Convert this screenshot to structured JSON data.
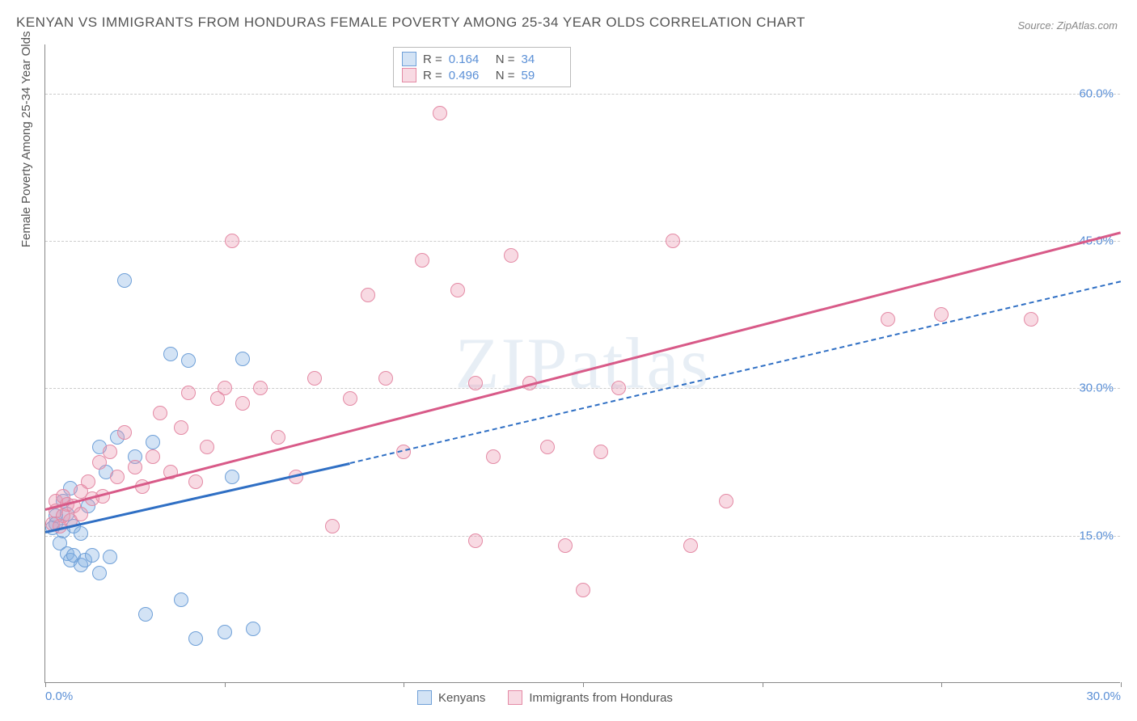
{
  "title": "KENYAN VS IMMIGRANTS FROM HONDURAS FEMALE POVERTY AMONG 25-34 YEAR OLDS CORRELATION CHART",
  "source": "Source: ZipAtlas.com",
  "watermark": "ZIPatlas",
  "y_axis_label": "Female Poverty Among 25-34 Year Olds",
  "chart": {
    "type": "scatter",
    "xlim": [
      0,
      30
    ],
    "ylim": [
      0,
      65
    ],
    "x_ticks": [
      0,
      5,
      10,
      15,
      20,
      25,
      30
    ],
    "x_tick_labels": {
      "0": "0.0%",
      "30": "30.0%"
    },
    "y_gridlines": [
      15,
      30,
      45,
      60
    ],
    "y_tick_labels": {
      "15": "15.0%",
      "30": "30.0%",
      "45": "45.0%",
      "60": "60.0%"
    },
    "background_color": "#ffffff",
    "grid_color": "#cccccc",
    "axis_color": "#888888"
  },
  "series": [
    {
      "name": "Kenyans",
      "fill": "rgba(130, 175, 225, 0.35)",
      "stroke": "#6fa0d8",
      "R": "0.164",
      "N": "34",
      "regression": {
        "x1": 0,
        "y1": 15.5,
        "x2": 8.5,
        "y2": 22.5,
        "color": "#2f6fc4",
        "dashed_ext": {
          "x2": 30,
          "y2": 41
        }
      },
      "points": [
        [
          0.2,
          15.8
        ],
        [
          0.3,
          17.0
        ],
        [
          0.3,
          16.2
        ],
        [
          0.4,
          14.2
        ],
        [
          0.5,
          15.5
        ],
        [
          0.5,
          18.5
        ],
        [
          0.6,
          13.2
        ],
        [
          0.6,
          17.2
        ],
        [
          0.7,
          12.5
        ],
        [
          0.7,
          19.8
        ],
        [
          0.8,
          13.0
        ],
        [
          0.8,
          16.0
        ],
        [
          1.0,
          12.0
        ],
        [
          1.0,
          15.2
        ],
        [
          1.1,
          12.5
        ],
        [
          1.2,
          18.0
        ],
        [
          1.3,
          13.0
        ],
        [
          1.5,
          11.2
        ],
        [
          1.5,
          24.0
        ],
        [
          1.7,
          21.5
        ],
        [
          1.8,
          12.8
        ],
        [
          2.0,
          25.0
        ],
        [
          2.2,
          41.0
        ],
        [
          2.5,
          23.0
        ],
        [
          2.8,
          7.0
        ],
        [
          3.0,
          24.5
        ],
        [
          3.5,
          33.5
        ],
        [
          3.8,
          8.5
        ],
        [
          4.0,
          32.8
        ],
        [
          4.2,
          4.5
        ],
        [
          5.0,
          5.2
        ],
        [
          5.2,
          21.0
        ],
        [
          5.5,
          33.0
        ],
        [
          5.8,
          5.5
        ]
      ]
    },
    {
      "name": "Immigrants from Honduras",
      "fill": "rgba(235, 150, 175, 0.35)",
      "stroke": "#e48aa5",
      "R": "0.496",
      "N": "59",
      "regression": {
        "x1": 0,
        "y1": 17.8,
        "x2": 30,
        "y2": 46,
        "color": "#d85a88"
      },
      "points": [
        [
          0.2,
          16.2
        ],
        [
          0.3,
          17.5
        ],
        [
          0.3,
          18.5
        ],
        [
          0.4,
          16.0
        ],
        [
          0.5,
          17.0
        ],
        [
          0.5,
          19.0
        ],
        [
          0.6,
          18.2
        ],
        [
          0.7,
          16.5
        ],
        [
          0.8,
          18.0
        ],
        [
          1.0,
          19.5
        ],
        [
          1.0,
          17.2
        ],
        [
          1.2,
          20.5
        ],
        [
          1.3,
          18.8
        ],
        [
          1.5,
          22.5
        ],
        [
          1.6,
          19.0
        ],
        [
          1.8,
          23.5
        ],
        [
          2.0,
          21.0
        ],
        [
          2.2,
          25.5
        ],
        [
          2.5,
          22.0
        ],
        [
          2.7,
          20.0
        ],
        [
          3.0,
          23.0
        ],
        [
          3.2,
          27.5
        ],
        [
          3.5,
          21.5
        ],
        [
          3.8,
          26.0
        ],
        [
          4.0,
          29.5
        ],
        [
          4.2,
          20.5
        ],
        [
          4.5,
          24.0
        ],
        [
          4.8,
          29.0
        ],
        [
          5.0,
          30.0
        ],
        [
          5.2,
          45.0
        ],
        [
          5.5,
          28.5
        ],
        [
          6.0,
          30.0
        ],
        [
          6.5,
          25.0
        ],
        [
          7.0,
          21.0
        ],
        [
          7.5,
          31.0
        ],
        [
          8.0,
          16.0
        ],
        [
          8.5,
          29.0
        ],
        [
          9.0,
          39.5
        ],
        [
          9.5,
          31.0
        ],
        [
          10.0,
          23.5
        ],
        [
          10.5,
          43.0
        ],
        [
          11.0,
          58.0
        ],
        [
          11.5,
          40.0
        ],
        [
          12.0,
          14.5
        ],
        [
          12.5,
          23.0
        ],
        [
          13.0,
          43.5
        ],
        [
          13.5,
          30.5
        ],
        [
          14.0,
          24.0
        ],
        [
          14.5,
          14.0
        ],
        [
          15.0,
          9.5
        ],
        [
          15.5,
          23.5
        ],
        [
          16.0,
          30.0
        ],
        [
          17.5,
          45.0
        ],
        [
          18.0,
          14.0
        ],
        [
          19.0,
          18.5
        ],
        [
          23.5,
          37.0
        ],
        [
          25.0,
          37.5
        ],
        [
          27.5,
          37.0
        ],
        [
          12.0,
          30.5
        ]
      ]
    }
  ],
  "stats_legend_labels": {
    "R": "R  =",
    "N": "N  ="
  },
  "bottom_legend": [
    "Kenyans",
    "Immigrants from Honduras"
  ]
}
